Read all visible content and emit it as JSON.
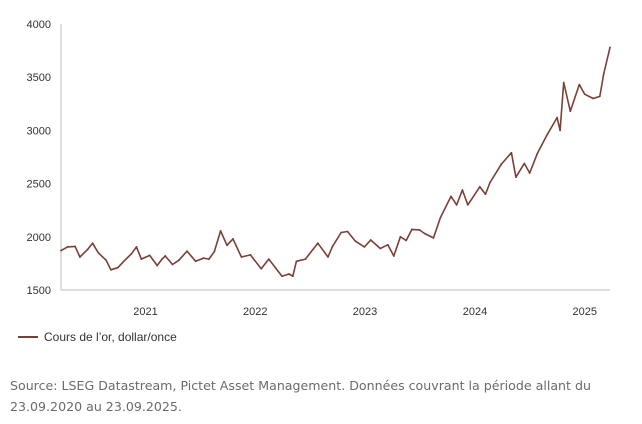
{
  "chart_data": {
    "type": "line",
    "title": "",
    "xlabel": "",
    "ylabel": "",
    "ylim": [
      1500,
      4000
    ],
    "y_ticks": [
      1500,
      2000,
      2500,
      3000,
      3500,
      4000
    ],
    "x_range": [
      "2020-09-23",
      "2025-09-23"
    ],
    "x_ticks": [
      {
        "label": "2021",
        "date": "2021-07-01"
      },
      {
        "label": "2022",
        "date": "2022-07-01"
      },
      {
        "label": "2023",
        "date": "2023-07-01"
      },
      {
        "label": "2024",
        "date": "2024-07-01"
      },
      {
        "label": "2025",
        "date": "2025-07-01"
      }
    ],
    "grid": false,
    "legend_position": "bottom-left",
    "series": [
      {
        "name": "Cours de l’or, dollar/once",
        "color": "#7a4036",
        "points": [
          [
            "2020-09-23",
            1870
          ],
          [
            "2020-10-15",
            1905
          ],
          [
            "2020-11-09",
            1910
          ],
          [
            "2020-11-25",
            1810
          ],
          [
            "2020-12-20",
            1880
          ],
          [
            "2021-01-06",
            1940
          ],
          [
            "2021-01-25",
            1850
          ],
          [
            "2021-02-20",
            1780
          ],
          [
            "2021-03-08",
            1690
          ],
          [
            "2021-03-31",
            1710
          ],
          [
            "2021-04-20",
            1770
          ],
          [
            "2021-05-15",
            1840
          ],
          [
            "2021-06-01",
            1905
          ],
          [
            "2021-06-17",
            1790
          ],
          [
            "2021-07-15",
            1825
          ],
          [
            "2021-08-09",
            1730
          ],
          [
            "2021-08-25",
            1790
          ],
          [
            "2021-09-05",
            1820
          ],
          [
            "2021-09-29",
            1740
          ],
          [
            "2021-10-20",
            1780
          ],
          [
            "2021-11-16",
            1865
          ],
          [
            "2021-12-15",
            1770
          ],
          [
            "2022-01-10",
            1800
          ],
          [
            "2022-01-28",
            1790
          ],
          [
            "2022-02-15",
            1860
          ],
          [
            "2022-03-08",
            2055
          ],
          [
            "2022-03-29",
            1920
          ],
          [
            "2022-04-18",
            1980
          ],
          [
            "2022-05-16",
            1810
          ],
          [
            "2022-06-15",
            1830
          ],
          [
            "2022-07-21",
            1700
          ],
          [
            "2022-08-15",
            1790
          ],
          [
            "2022-09-28",
            1630
          ],
          [
            "2022-10-21",
            1650
          ],
          [
            "2022-11-03",
            1630
          ],
          [
            "2022-11-15",
            1770
          ],
          [
            "2022-12-15",
            1790
          ],
          [
            "2023-01-25",
            1940
          ],
          [
            "2023-02-28",
            1810
          ],
          [
            "2023-03-15",
            1910
          ],
          [
            "2023-04-13",
            2040
          ],
          [
            "2023-05-04",
            2050
          ],
          [
            "2023-05-30",
            1960
          ],
          [
            "2023-06-29",
            1905
          ],
          [
            "2023-07-20",
            1970
          ],
          [
            "2023-08-21",
            1890
          ],
          [
            "2023-09-15",
            1925
          ],
          [
            "2023-10-05",
            1820
          ],
          [
            "2023-10-27",
            2000
          ],
          [
            "2023-11-15",
            1965
          ],
          [
            "2023-12-04",
            2070
          ],
          [
            "2023-12-29",
            2065
          ],
          [
            "2024-01-16",
            2030
          ],
          [
            "2024-02-14",
            1990
          ],
          [
            "2024-03-08",
            2180
          ],
          [
            "2024-04-12",
            2380
          ],
          [
            "2024-05-01",
            2300
          ],
          [
            "2024-05-20",
            2440
          ],
          [
            "2024-06-07",
            2300
          ],
          [
            "2024-07-17",
            2470
          ],
          [
            "2024-08-05",
            2400
          ],
          [
            "2024-08-20",
            2510
          ],
          [
            "2024-09-26",
            2680
          ],
          [
            "2024-10-30",
            2790
          ],
          [
            "2024-11-14",
            2560
          ],
          [
            "2024-12-12",
            2690
          ],
          [
            "2024-12-30",
            2600
          ],
          [
            "2025-01-24",
            2780
          ],
          [
            "2025-02-24",
            2950
          ],
          [
            "2025-03-31",
            3120
          ],
          [
            "2025-04-10",
            3000
          ],
          [
            "2025-04-22",
            3450
          ],
          [
            "2025-05-14",
            3180
          ],
          [
            "2025-06-13",
            3430
          ],
          [
            "2025-07-01",
            3340
          ],
          [
            "2025-07-29",
            3300
          ],
          [
            "2025-08-20",
            3320
          ],
          [
            "2025-09-02",
            3530
          ],
          [
            "2025-09-23",
            3780
          ]
        ]
      }
    ]
  },
  "source_text": "Source: LSEG Datastream, Pictet Asset Management. Données couvrant la période allant du 23.09.2020 au 23.09.2025."
}
